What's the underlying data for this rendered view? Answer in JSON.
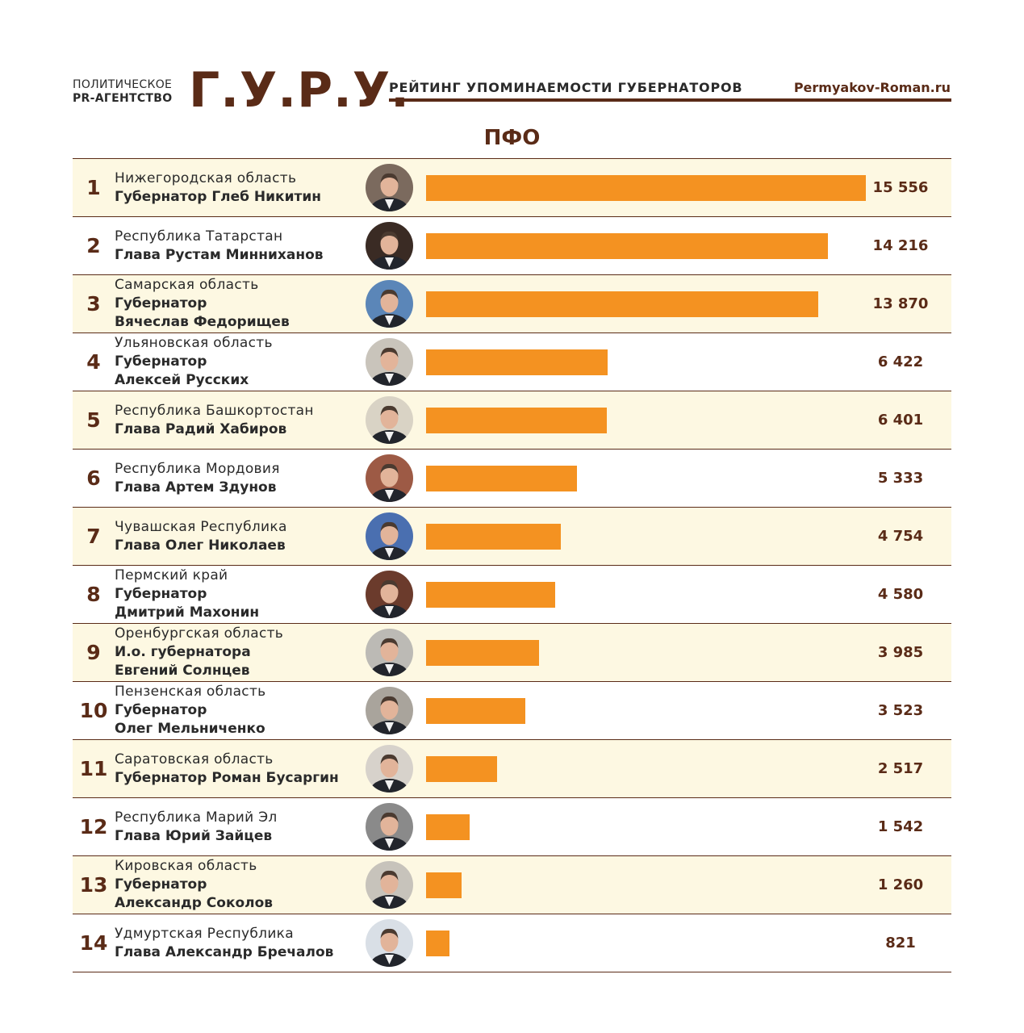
{
  "header": {
    "brand_line1": "ПОЛИТИЧЕСКОЕ",
    "brand_line2": "PR-АГЕНТСТВО",
    "brand_logo": "Г.У.Р.У.",
    "title": "РЕЙТИНГ УПОМИНАЕМОСТИ ГУБЕРНАТОРОВ",
    "site": "Permyakov-Roman.ru"
  },
  "colors": {
    "brand": "#5a2b17",
    "bar": "#f49221",
    "row_shade": "#fdf8e2"
  },
  "chart_data": {
    "type": "bar",
    "title": "ПФО",
    "orientation": "horizontal",
    "categories": [
      "Нижегородская область",
      "Республика Татарстан",
      "Самарская область",
      "Ульяновская область",
      "Республика Башкортостан",
      "Республика Мордовия",
      "Чувашская Республика",
      "Пермский край",
      "Оренбургская область",
      "Пензенская область",
      "Саратовская область",
      "Республика Марий Эл",
      "Кировская область",
      "Удмуртская Республика"
    ],
    "values": [
      15556,
      14216,
      13870,
      6422,
      6401,
      5333,
      4754,
      4580,
      3985,
      3523,
      2517,
      1542,
      1260,
      821
    ],
    "rows": [
      {
        "rank": "1",
        "region": "Нижегородская область",
        "person": [
          "Губернатор Глеб Никитин"
        ],
        "value": 15556,
        "value_label": "15 556",
        "avatar": "portrait-icon"
      },
      {
        "rank": "2",
        "region": "Республика Татарстан",
        "person": [
          "Глава Рустам Минниханов"
        ],
        "value": 14216,
        "value_label": "14 216",
        "avatar": "portrait-icon"
      },
      {
        "rank": "3",
        "region": "Самарская область",
        "person": [
          "Губернатор",
          "Вячеслав Федорищев"
        ],
        "value": 13870,
        "value_label": "13 870",
        "avatar": "portrait-icon"
      },
      {
        "rank": "4",
        "region": "Ульяновская область",
        "person": [
          "Губернатор",
          "Алексей Русских"
        ],
        "value": 6422,
        "value_label": "6 422",
        "avatar": "portrait-icon"
      },
      {
        "rank": "5",
        "region": "Республика Башкортостан",
        "person": [
          "Глава Радий Хабиров"
        ],
        "value": 6401,
        "value_label": "6 401",
        "avatar": "portrait-icon"
      },
      {
        "rank": "6",
        "region": "Республика Мордовия",
        "person": [
          "Глава Артем Здунов"
        ],
        "value": 5333,
        "value_label": "5 333",
        "avatar": "portrait-icon"
      },
      {
        "rank": "7",
        "region": "Чувашская Республика",
        "person": [
          "Глава Олег Николаев"
        ],
        "value": 4754,
        "value_label": "4 754",
        "avatar": "portrait-icon"
      },
      {
        "rank": "8",
        "region": "Пермский край",
        "person": [
          "Губернатор",
          "Дмитрий Махонин"
        ],
        "value": 4580,
        "value_label": "4 580",
        "avatar": "portrait-icon"
      },
      {
        "rank": "9",
        "region": "Оренбургская область",
        "person": [
          "И.о. губернатора",
          "Евгений Солнцев"
        ],
        "value": 3985,
        "value_label": "3 985",
        "avatar": "portrait-icon"
      },
      {
        "rank": "10",
        "region": "Пензенская область",
        "person": [
          "Губернатор",
          "Олег Мельниченко"
        ],
        "value": 3523,
        "value_label": "3 523",
        "avatar": "portrait-icon"
      },
      {
        "rank": "11",
        "region": "Саратовская область",
        "person": [
          "Губернатор Роман Бусаргин"
        ],
        "value": 2517,
        "value_label": "2 517",
        "avatar": "portrait-icon"
      },
      {
        "rank": "12",
        "region": "Республика Марий Эл",
        "person": [
          "Глава Юрий Зайцев"
        ],
        "value": 1542,
        "value_label": "1 542",
        "avatar": "portrait-icon"
      },
      {
        "rank": "13",
        "region": "Кировская область",
        "person": [
          "Губернатор",
          "Александр Соколов"
        ],
        "value": 1260,
        "value_label": "1 260",
        "avatar": "portrait-icon"
      },
      {
        "rank": "14",
        "region": "Удмуртская Республика",
        "person": [
          "Глава Александр Бречалов"
        ],
        "value": 821,
        "value_label": "821",
        "avatar": "portrait-icon"
      }
    ]
  }
}
